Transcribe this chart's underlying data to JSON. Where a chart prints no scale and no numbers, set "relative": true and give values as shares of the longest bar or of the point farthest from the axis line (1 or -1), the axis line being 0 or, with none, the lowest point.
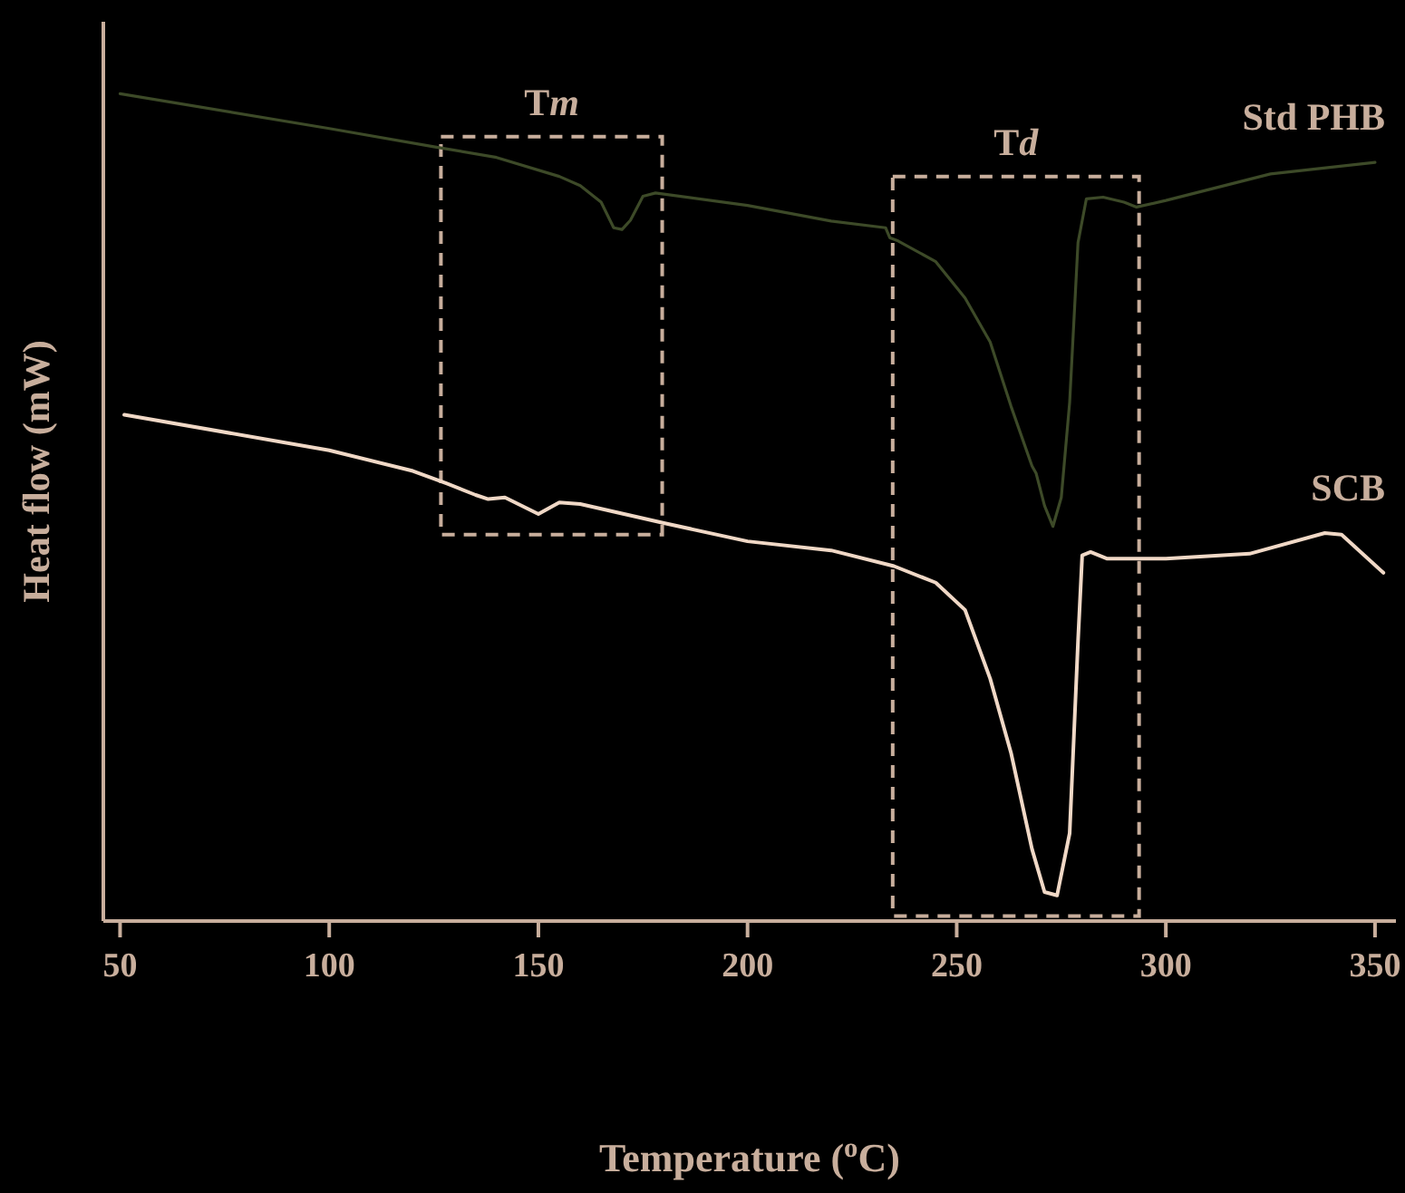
{
  "chart_data": {
    "type": "line",
    "relative": true,
    "xlabel": "Temperature ($^{o}$C)",
    "ylabel": "Heat flow (mW)",
    "xlim": [
      46,
      355
    ],
    "xticks": [
      50,
      100,
      150,
      200,
      250,
      300,
      350
    ],
    "marker": "none",
    "line_style": "solid",
    "bands": [
      {
        "axis": "x",
        "from": 126.7,
        "to": 179.6,
        "label": "Tm"
      },
      {
        "axis": "x",
        "from": 234.7,
        "to": 293.6,
        "label": "Td"
      }
    ],
    "series": [
      {
        "name": "Std PHB",
        "color": "#3d4a28",
        "x": [
          50,
          100,
          125,
          140,
          155,
          160,
          165,
          168,
          170,
          172,
          175,
          178,
          200,
          220,
          233,
          234,
          236,
          245,
          252,
          258,
          263,
          268,
          269,
          271,
          273,
          275,
          277,
          279,
          281,
          285,
          290,
          293,
          300,
          325,
          350
        ],
        "values": [
          1.0,
          0.958,
          0.936,
          0.923,
          0.9,
          0.889,
          0.869,
          0.838,
          0.836,
          0.847,
          0.876,
          0.88,
          0.865,
          0.846,
          0.838,
          0.826,
          0.822,
          0.797,
          0.753,
          0.7,
          0.622,
          0.55,
          0.541,
          0.502,
          0.477,
          0.512,
          0.627,
          0.82,
          0.873,
          0.875,
          0.869,
          0.863,
          0.871,
          0.903,
          0.917
        ]
      },
      {
        "name": "SCB",
        "color": "#f0d8c6",
        "x": [
          51,
          100,
          120,
          128,
          135,
          138,
          142,
          150,
          155,
          160,
          180,
          200,
          220,
          235,
          245,
          252,
          258,
          263,
          268,
          271,
          274,
          277,
          279,
          280,
          282,
          286,
          300,
          320,
          338,
          342,
          352
        ],
        "values": [
          0.612,
          0.569,
          0.544,
          0.529,
          0.515,
          0.51,
          0.512,
          0.492,
          0.506,
          0.504,
          0.481,
          0.459,
          0.448,
          0.429,
          0.409,
          0.376,
          0.293,
          0.203,
          0.087,
          0.035,
          0.031,
          0.106,
          0.338,
          0.442,
          0.446,
          0.438,
          0.438,
          0.444,
          0.469,
          0.467,
          0.421
        ]
      }
    ]
  }
}
